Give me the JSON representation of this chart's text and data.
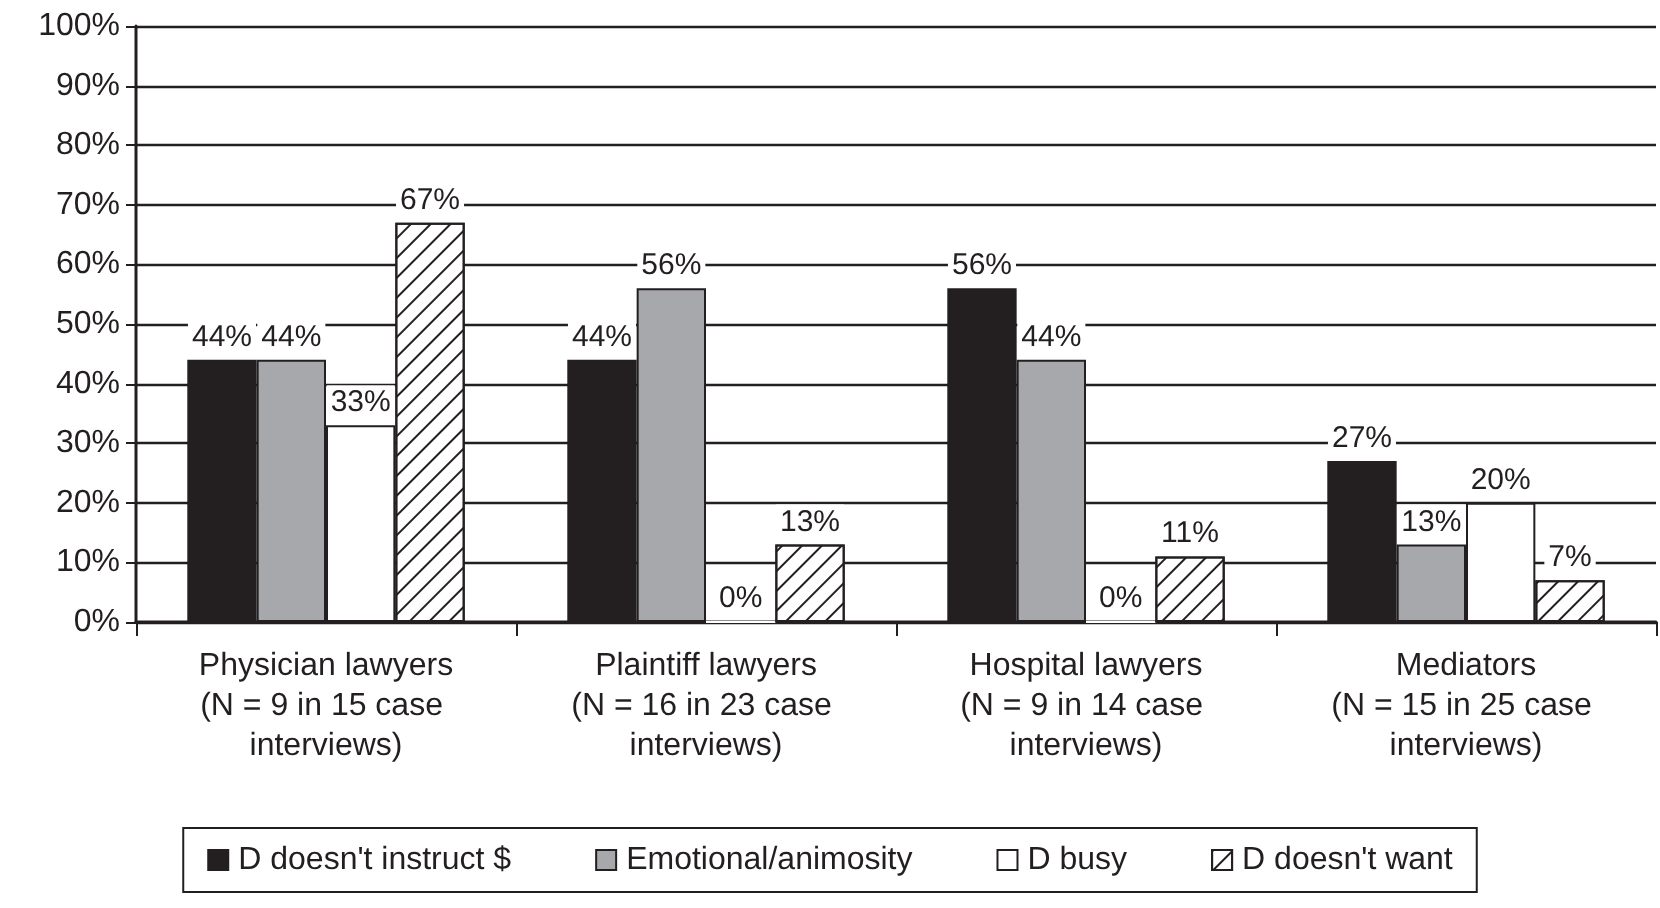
{
  "chart_data": {
    "type": "bar",
    "categories": [
      "Physician lawyers (N = 9 in 15 case interviews)",
      "Plaintiff lawyers (N = 16 in 23 case interviews)",
      "Hospital lawyers (N = 9 in 14 case interviews)",
      "Mediators (N = 15 in 25 case interviews)"
    ],
    "series": [
      {
        "name": "D doesn't instruct $",
        "color": "#231f20",
        "values": [
          44,
          44,
          56,
          27
        ],
        "value_labels": [
          "44%",
          "44%",
          "56%",
          "27%"
        ]
      },
      {
        "name": "Emotional/animosity",
        "color": "#a6a8ab",
        "values": [
          44,
          56,
          44,
          13
        ],
        "value_labels": [
          "44%",
          "56%",
          "44%",
          "13%"
        ]
      },
      {
        "name": "D busy",
        "color": "#ffffff",
        "values": [
          33,
          0,
          0,
          20
        ],
        "value_labels": [
          "33%",
          "0%",
          "0%",
          "20%"
        ]
      },
      {
        "name": "D doesn't want",
        "color": "#ffffff",
        "values": [
          67,
          13,
          11,
          7
        ],
        "value_labels": [
          "67%",
          "13%",
          "11%",
          "7%"
        ]
      }
    ],
    "ylim": [
      0,
      100
    ],
    "yticks": [
      {
        "value": 0,
        "label": "0%"
      },
      {
        "value": 10,
        "label": "10%"
      },
      {
        "value": 20,
        "label": "20%"
      },
      {
        "value": 30,
        "label": "30%"
      },
      {
        "value": 40,
        "label": "40%"
      },
      {
        "value": 50,
        "label": "50%"
      },
      {
        "value": 60,
        "label": "60%"
      },
      {
        "value": 70,
        "label": "70%"
      },
      {
        "value": 80,
        "label": "80%"
      },
      {
        "value": 90,
        "label": "90%"
      },
      {
        "value": 100,
        "label": "100%"
      }
    ],
    "grid": "y",
    "legend": "bottom"
  }
}
